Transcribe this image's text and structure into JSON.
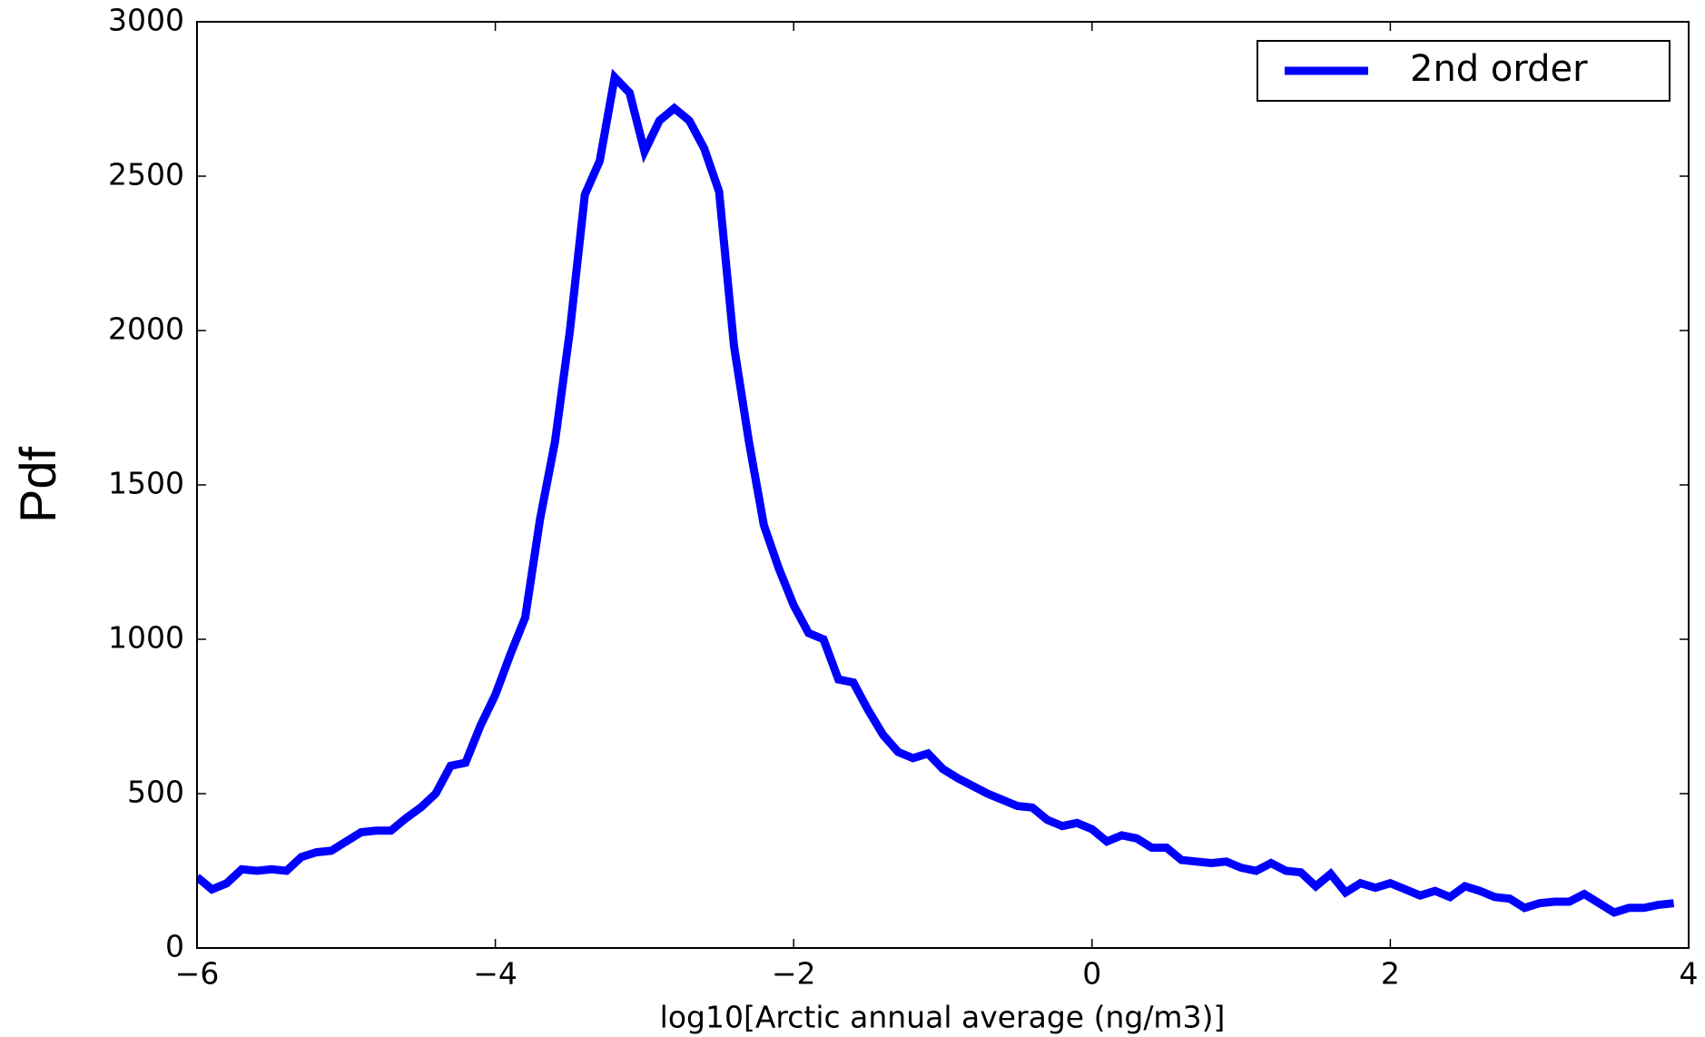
{
  "chart_data": {
    "type": "line",
    "xlabel": "log10[Arctic annual average (ng/m3)]",
    "ylabel": "Pdf",
    "x": [
      -6.0,
      -5.9,
      -5.8,
      -5.7,
      -5.6,
      -5.5,
      -5.4,
      -5.3,
      -5.2,
      -5.1,
      -5.0,
      -4.9,
      -4.8,
      -4.7,
      -4.6,
      -4.5,
      -4.4,
      -4.3,
      -4.2,
      -4.1,
      -4.0,
      -3.9,
      -3.8,
      -3.7,
      -3.6,
      -3.5,
      -3.4,
      -3.3,
      -3.2,
      -3.1,
      -3.0,
      -2.9,
      -2.8,
      -2.7,
      -2.6,
      -2.5,
      -2.4,
      -2.3,
      -2.2,
      -2.1,
      -2.0,
      -1.9,
      -1.8,
      -1.7,
      -1.6,
      -1.5,
      -1.4,
      -1.3,
      -1.2,
      -1.1,
      -1.0,
      -0.9,
      -0.8,
      -0.7,
      -0.6,
      -0.5,
      -0.4,
      -0.3,
      -0.2,
      -0.1,
      0.0,
      0.1,
      0.2,
      0.3,
      0.4,
      0.5,
      0.6,
      0.7,
      0.8,
      0.9,
      1.0,
      1.1,
      1.2,
      1.3,
      1.4,
      1.5,
      1.6,
      1.7,
      1.8,
      1.9,
      2.0,
      2.1,
      2.2,
      2.3,
      2.4,
      2.5,
      2.6,
      2.7,
      2.8,
      2.9,
      3.0,
      3.1,
      3.2,
      3.3,
      3.4,
      3.5,
      3.6,
      3.7,
      3.8,
      3.9
    ],
    "series": [
      {
        "name": "2nd order",
        "color": "#0000ff",
        "values": [
          230,
          190,
          210,
          255,
          250,
          255,
          250,
          295,
          310,
          315,
          345,
          375,
          380,
          380,
          420,
          455,
          500,
          590,
          600,
          720,
          820,
          950,
          1070,
          1390,
          1640,
          2000,
          2440,
          2550,
          2820,
          2770,
          2580,
          2680,
          2720,
          2680,
          2590,
          2450,
          1950,
          1640,
          1370,
          1230,
          1110,
          1020,
          1000,
          870,
          860,
          770,
          690,
          635,
          615,
          630,
          580,
          550,
          525,
          500,
          480,
          460,
          455,
          415,
          395,
          405,
          385,
          345,
          365,
          355,
          325,
          325,
          285,
          280,
          275,
          280,
          260,
          250,
          275,
          250,
          245,
          200,
          240,
          180,
          210,
          195,
          210,
          190,
          170,
          185,
          165,
          200,
          185,
          165,
          160,
          130,
          145,
          150,
          150,
          175,
          145,
          115,
          130,
          130,
          140,
          145
        ]
      }
    ],
    "xlim": [
      -6,
      4
    ],
    "xticks": [
      {
        "value": -6,
        "label": "−6"
      },
      {
        "value": -4,
        "label": "−4"
      },
      {
        "value": -2,
        "label": "−2"
      },
      0,
      2,
      4
    ],
    "ylim": [
      0,
      3000
    ],
    "yticks": [
      0,
      500,
      1000,
      1500,
      2000,
      2500,
      3000
    ],
    "legend": "upper right"
  }
}
